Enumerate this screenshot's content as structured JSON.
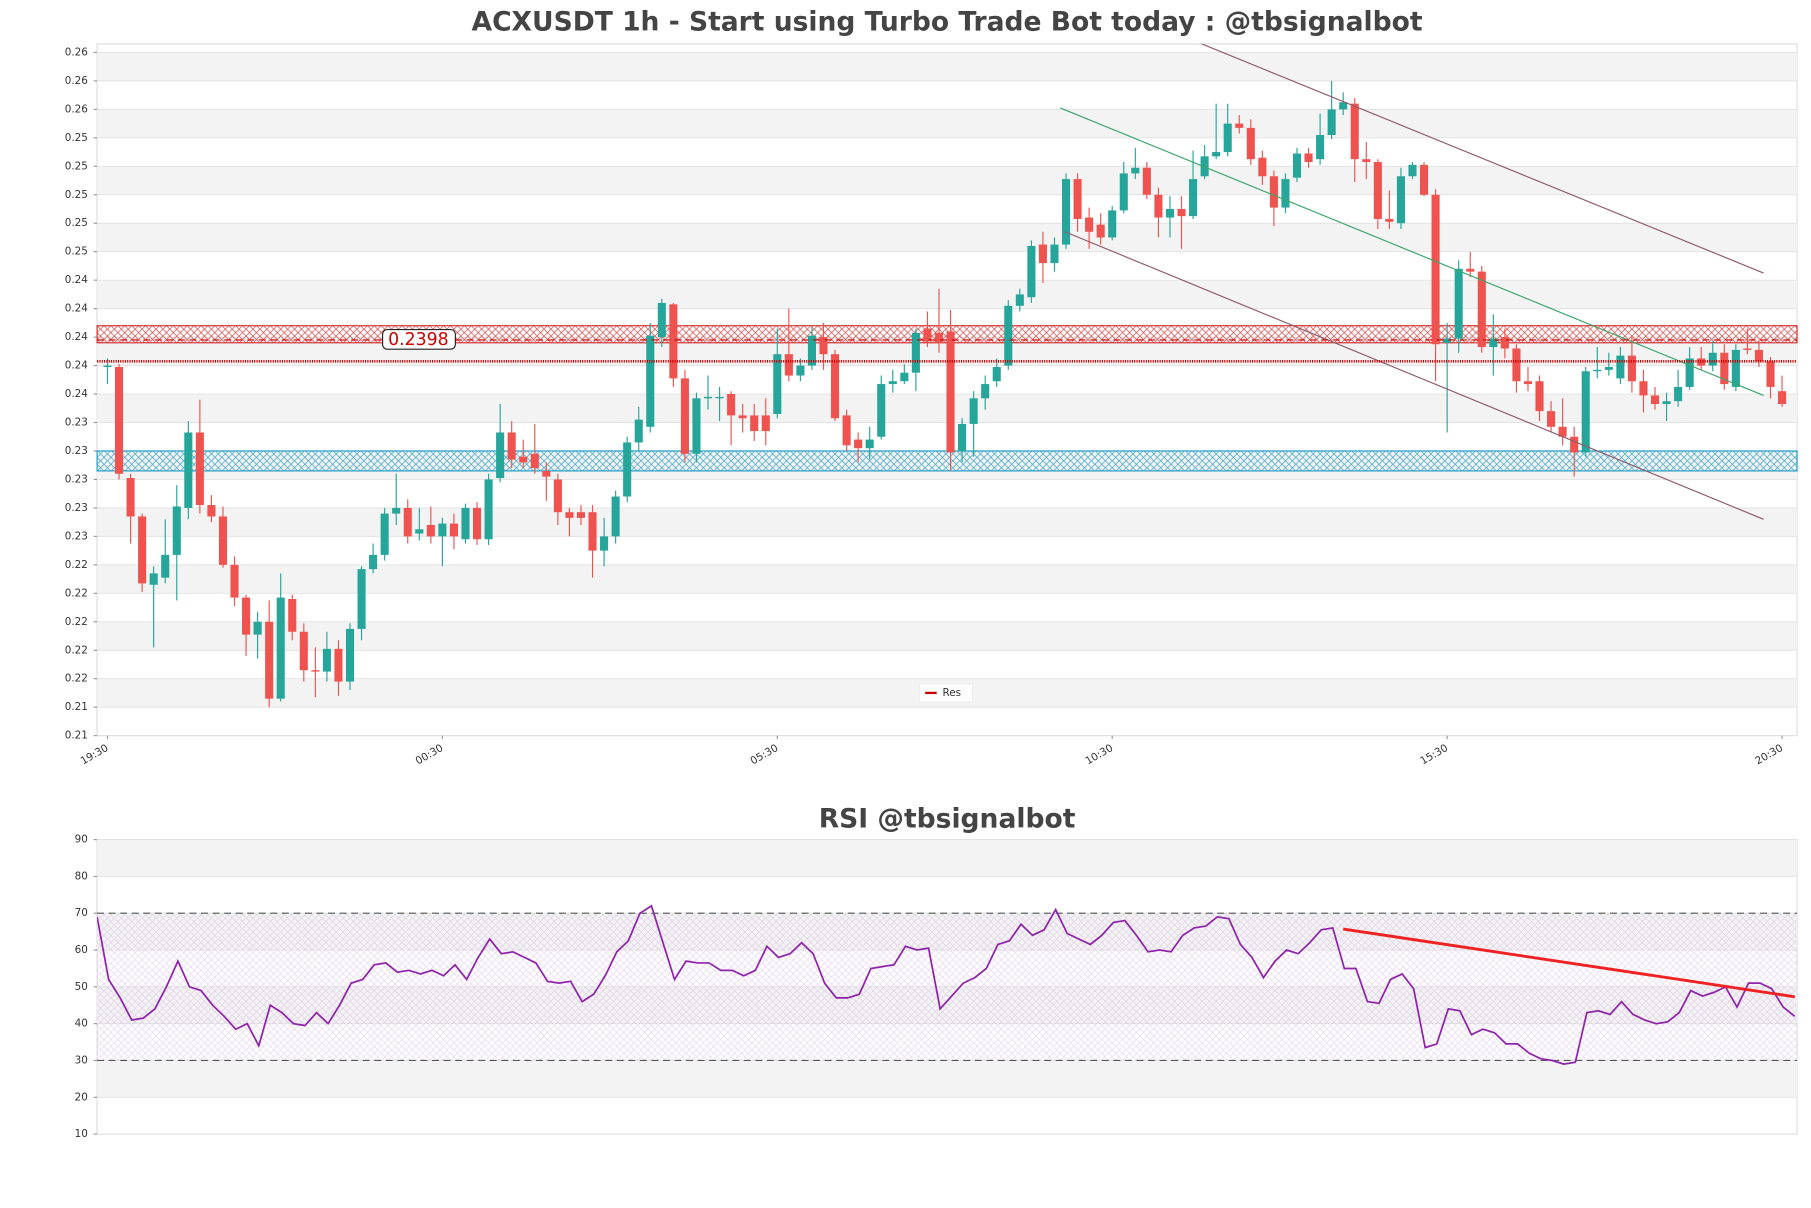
{
  "chart_data": [
    {
      "type": "candlestick",
      "title": "ACXUSDT 1h - Start using Turbo Trade Bot today : @tbsignalbot",
      "xlim": [
        -0.9,
        146.3
      ],
      "xticks": [
        {
          "value": 0,
          "label": "19:30"
        },
        {
          "value": 29,
          "label": "00:30"
        },
        {
          "value": 58,
          "label": "05:30"
        },
        {
          "value": 87,
          "label": "10:30"
        },
        {
          "value": 116,
          "label": "15:30"
        },
        {
          "value": 145,
          "label": "20:30"
        }
      ],
      "ylim": [
        0.212,
        0.2606
      ],
      "yticks": [
        {
          "value": 0.212,
          "label": "0.21"
        },
        {
          "value": 0.214,
          "label": "0.21"
        },
        {
          "value": 0.216,
          "label": "0.22"
        },
        {
          "value": 0.218,
          "label": "0.22"
        },
        {
          "value": 0.22,
          "label": "0.22"
        },
        {
          "value": 0.222,
          "label": "0.22"
        },
        {
          "value": 0.224,
          "label": "0.22"
        },
        {
          "value": 0.226,
          "label": "0.23"
        },
        {
          "value": 0.228,
          "label": "0.23"
        },
        {
          "value": 0.23,
          "label": "0.23"
        },
        {
          "value": 0.232,
          "label": "0.23"
        },
        {
          "value": 0.234,
          "label": "0.23"
        },
        {
          "value": 0.236,
          "label": "0.24"
        },
        {
          "value": 0.238,
          "label": "0.24"
        },
        {
          "value": 0.24,
          "label": "0.24"
        },
        {
          "value": 0.242,
          "label": "0.24"
        },
        {
          "value": 0.244,
          "label": "0.24"
        },
        {
          "value": 0.246,
          "label": "0.25"
        },
        {
          "value": 0.248,
          "label": "0.25"
        },
        {
          "value": 0.25,
          "label": "0.25"
        },
        {
          "value": 0.252,
          "label": "0.25"
        },
        {
          "value": 0.254,
          "label": "0.25"
        },
        {
          "value": 0.256,
          "label": "0.26"
        },
        {
          "value": 0.258,
          "label": "0.26"
        },
        {
          "value": 0.26,
          "label": "0.26"
        }
      ],
      "grid": true,
      "up_color": "#26a69a",
      "down_color": "#ef5350",
      "open": [
        0.2379,
        0.2379,
        0.2301,
        0.2274,
        0.2226,
        0.2231,
        0.2247,
        0.228,
        0.2333,
        0.2282,
        0.2274,
        0.224,
        0.2217,
        0.2191,
        0.22,
        0.2146,
        0.2216,
        0.2193,
        0.2166,
        0.2165,
        0.2181,
        0.2158,
        0.2195,
        0.2237,
        0.2247,
        0.2276,
        0.228,
        0.2262,
        0.2268,
        0.226,
        0.2269,
        0.2258,
        0.228,
        0.2258,
        0.2301,
        0.2333,
        0.2316,
        0.2318,
        0.2306,
        0.23,
        0.2277,
        0.2277,
        0.2277,
        0.225,
        0.226,
        0.2288,
        0.2326,
        0.2337,
        0.24,
        0.2423,
        0.2371,
        0.2318,
        0.2357,
        0.2357,
        0.236,
        0.2345,
        0.2345,
        0.2345,
        0.2346,
        0.2388,
        0.2373,
        0.238,
        0.24,
        0.2388,
        0.2345,
        0.2328,
        0.2322,
        0.233,
        0.2367,
        0.2369,
        0.2375,
        0.2406,
        0.2403,
        0.2404,
        0.232,
        0.2339,
        0.2357,
        0.2369,
        0.238,
        0.2422,
        0.2428,
        0.2465,
        0.2452,
        0.2465,
        0.2511,
        0.2484,
        0.2479,
        0.247,
        0.2489,
        0.2515,
        0.2519,
        0.25,
        0.2484,
        0.249,
        0.2485,
        0.2513,
        0.2527,
        0.253,
        0.255,
        0.2547,
        0.2526,
        0.2513,
        0.2491,
        0.2512,
        0.2529,
        0.2525,
        0.2542,
        0.256,
        0.2564,
        0.2525,
        0.2523,
        0.2483,
        0.248,
        0.2513,
        0.2521,
        0.25,
        0.2396,
        0.2399,
        0.2448,
        0.2446,
        0.2393,
        0.24,
        0.2392,
        0.2369,
        0.2369,
        0.2348,
        0.2337,
        0.233,
        0.2319,
        0.2376,
        0.2377,
        0.2371,
        0.2387,
        0.2369,
        0.2359,
        0.2353,
        0.2355,
        0.2365,
        0.2385,
        0.238,
        0.2389,
        0.2365,
        0.2392,
        0.2391,
        0.2383,
        0.2362
      ],
      "high": [
        0.2385,
        0.2381,
        0.2304,
        0.2276,
        0.2239,
        0.2272,
        0.2296,
        0.2341,
        0.2356,
        0.2289,
        0.2281,
        0.2246,
        0.2219,
        0.2207,
        0.2215,
        0.2234,
        0.2219,
        0.2199,
        0.2182,
        0.2193,
        0.2187,
        0.2199,
        0.2239,
        0.2255,
        0.228,
        0.2304,
        0.2286,
        0.228,
        0.2281,
        0.2273,
        0.2276,
        0.2283,
        0.2284,
        0.2304,
        0.2353,
        0.2341,
        0.2328,
        0.2339,
        0.2312,
        0.2304,
        0.228,
        0.2282,
        0.2282,
        0.2273,
        0.2292,
        0.233,
        0.2351,
        0.241,
        0.2427,
        0.2424,
        0.2377,
        0.2361,
        0.2373,
        0.2365,
        0.2362,
        0.2353,
        0.2353,
        0.2357,
        0.2406,
        0.242,
        0.2385,
        0.2407,
        0.241,
        0.2391,
        0.2349,
        0.2333,
        0.2337,
        0.2373,
        0.2377,
        0.2381,
        0.2406,
        0.2418,
        0.2434,
        0.2419,
        0.2343,
        0.2362,
        0.2373,
        0.2385,
        0.2426,
        0.2434,
        0.2468,
        0.2474,
        0.247,
        0.2515,
        0.2515,
        0.2491,
        0.2487,
        0.2492,
        0.2523,
        0.2533,
        0.2523,
        0.2505,
        0.2499,
        0.2499,
        0.2531,
        0.2535,
        0.2564,
        0.2564,
        0.2556,
        0.2553,
        0.2531,
        0.2517,
        0.2515,
        0.2533,
        0.2533,
        0.2557,
        0.258,
        0.2572,
        0.2568,
        0.2537,
        0.2525,
        0.2503,
        0.2519,
        0.2523,
        0.2523,
        0.2504,
        0.241,
        0.2454,
        0.246,
        0.245,
        0.2416,
        0.2406,
        0.2395,
        0.2379,
        0.2373,
        0.2355,
        0.2357,
        0.2337,
        0.2379,
        0.2393,
        0.2389,
        0.2393,
        0.2401,
        0.2377,
        0.2365,
        0.2361,
        0.2377,
        0.2393,
        0.2393,
        0.2397,
        0.2395,
        0.2395,
        0.2406,
        0.2397,
        0.2386,
        0.2373
      ],
      "low": [
        0.2367,
        0.23,
        0.2255,
        0.2221,
        0.2182,
        0.2227,
        0.2215,
        0.2272,
        0.2276,
        0.227,
        0.2238,
        0.2211,
        0.2176,
        0.2174,
        0.214,
        0.2144,
        0.2187,
        0.2158,
        0.2147,
        0.2158,
        0.2148,
        0.2152,
        0.2187,
        0.2234,
        0.2243,
        0.2268,
        0.2255,
        0.2257,
        0.2255,
        0.2239,
        0.2251,
        0.2255,
        0.2254,
        0.2254,
        0.2298,
        0.2308,
        0.2308,
        0.2304,
        0.2285,
        0.2268,
        0.226,
        0.2268,
        0.2231,
        0.2239,
        0.2255,
        0.2284,
        0.232,
        0.2333,
        0.2393,
        0.2365,
        0.2312,
        0.2312,
        0.2349,
        0.2341,
        0.2324,
        0.2333,
        0.2327,
        0.2324,
        0.2343,
        0.2369,
        0.2369,
        0.2377,
        0.2377,
        0.2341,
        0.232,
        0.2312,
        0.2314,
        0.2328,
        0.2361,
        0.2367,
        0.2362,
        0.2393,
        0.2389,
        0.2306,
        0.2312,
        0.2316,
        0.2349,
        0.2365,
        0.2377,
        0.2418,
        0.2424,
        0.2438,
        0.2446,
        0.2462,
        0.2474,
        0.2462,
        0.2465,
        0.2468,
        0.2487,
        0.2511,
        0.2497,
        0.247,
        0.247,
        0.2462,
        0.2483,
        0.2511,
        0.2525,
        0.2527,
        0.2543,
        0.2521,
        0.2507,
        0.2478,
        0.2487,
        0.2509,
        0.2519,
        0.2521,
        0.2539,
        0.2556,
        0.2509,
        0.2511,
        0.2476,
        0.2476,
        0.2476,
        0.2511,
        0.2499,
        0.2369,
        0.2333,
        0.2389,
        0.2442,
        0.2389,
        0.2373,
        0.2385,
        0.2361,
        0.2362,
        0.2341,
        0.2333,
        0.2324,
        0.2302,
        0.2316,
        0.2371,
        0.2373,
        0.2367,
        0.2361,
        0.2347,
        0.2349,
        0.2341,
        0.2351,
        0.2363,
        0.2377,
        0.2376,
        0.2363,
        0.2362,
        0.2388,
        0.2379,
        0.2357,
        0.2351
      ],
      "close": [
        0.238,
        0.2304,
        0.2274,
        0.2227,
        0.2234,
        0.2247,
        0.2281,
        0.2333,
        0.2282,
        0.2274,
        0.224,
        0.2217,
        0.2191,
        0.22,
        0.2146,
        0.2217,
        0.2193,
        0.2166,
        0.2165,
        0.2181,
        0.2158,
        0.2195,
        0.2237,
        0.2247,
        0.2276,
        0.228,
        0.226,
        0.2265,
        0.226,
        0.2269,
        0.226,
        0.228,
        0.2258,
        0.23,
        0.2333,
        0.2314,
        0.2312,
        0.2308,
        0.2302,
        0.2277,
        0.2273,
        0.2273,
        0.225,
        0.226,
        0.2288,
        0.2326,
        0.2342,
        0.2401,
        0.2424,
        0.2371,
        0.2318,
        0.2357,
        0.2358,
        0.2358,
        0.2345,
        0.2343,
        0.2334,
        0.2334,
        0.2388,
        0.2373,
        0.238,
        0.2401,
        0.2388,
        0.2343,
        0.2324,
        0.2322,
        0.2328,
        0.2367,
        0.2369,
        0.2375,
        0.2403,
        0.2397,
        0.2396,
        0.2319,
        0.2339,
        0.2357,
        0.2367,
        0.2379,
        0.2422,
        0.243,
        0.2464,
        0.2452,
        0.2465,
        0.2511,
        0.2483,
        0.2474,
        0.247,
        0.2489,
        0.2515,
        0.2519,
        0.25,
        0.2484,
        0.249,
        0.2485,
        0.2511,
        0.2527,
        0.253,
        0.255,
        0.2547,
        0.2525,
        0.2513,
        0.2491,
        0.2511,
        0.2529,
        0.2523,
        0.2542,
        0.256,
        0.2565,
        0.2525,
        0.2523,
        0.2483,
        0.2481,
        0.2513,
        0.2521,
        0.25,
        0.2395,
        0.2399,
        0.2448,
        0.2446,
        0.2393,
        0.2399,
        0.2392,
        0.2369,
        0.2367,
        0.2348,
        0.2337,
        0.233,
        0.2319,
        0.2376,
        0.2377,
        0.2379,
        0.2387,
        0.2369,
        0.2359,
        0.2353,
        0.2355,
        0.2365,
        0.2385,
        0.238,
        0.2389,
        0.2367,
        0.2391,
        0.2391,
        0.2383,
        0.2365,
        0.2353
      ],
      "zones": [
        {
          "range": [
            0.2396,
            0.2408
          ],
          "color": "#d32f2f"
        },
        {
          "range": [
            0.2306,
            0.232
          ],
          "color": "#1f9bc4"
        }
      ],
      "resistance": {
        "name": "Res",
        "value": 0.2383,
        "color": "#cc0000"
      },
      "legend": "lower center",
      "price_label": 0.2398,
      "trend_lines": [
        {
          "x": [
            87.5,
            143.4
          ],
          "y": [
            0.263,
            0.2445
          ],
          "color": "#8d5a6a"
        },
        {
          "x": [
            82.9,
            143.4
          ],
          "y": [
            0.2474,
            0.2272
          ],
          "color": "#8d5a6a"
        },
        {
          "x": [
            82.5,
            143.4
          ],
          "y": [
            0.2561,
            0.2359
          ],
          "color": "#3aa66a"
        }
      ]
    },
    {
      "type": "line",
      "title": "RSI @tbsignalbot",
      "xlim": [
        0,
        147.2
      ],
      "ylim": [
        10,
        90
      ],
      "yticks": [
        10,
        20,
        30,
        40,
        50,
        60,
        70,
        80,
        90
      ],
      "grid": true,
      "levels": [
        30,
        70
      ],
      "series": [
        {
          "color": "#8e24aa",
          "values": [
            69,
            52,
            47,
            41,
            41.5,
            44,
            50,
            57,
            50,
            49,
            45,
            42,
            38.5,
            40,
            34,
            45,
            43,
            40,
            39.5,
            43,
            40,
            45,
            51,
            52,
            56,
            56.5,
            54,
            54.5,
            53.5,
            54.5,
            53,
            56,
            52,
            58,
            63,
            59,
            59.5,
            58,
            56.5,
            51.5,
            51,
            51.5,
            46,
            48,
            53,
            59.5,
            62.5,
            70,
            72,
            62,
            52,
            57,
            56.5,
            56.5,
            54.5,
            54.5,
            53,
            54.5,
            61,
            58,
            59,
            62,
            59,
            51,
            47,
            47,
            48,
            55,
            55.5,
            56,
            61,
            60,
            60.5,
            44,
            47.5,
            51,
            52.5,
            55,
            61.5,
            62.5,
            67,
            64,
            65.5,
            71,
            64.5,
            63,
            61.5,
            64,
            67.5,
            68,
            64,
            59.5,
            60,
            59.5,
            64,
            66,
            66.5,
            69,
            68.5,
            61.5,
            58,
            52.5,
            57,
            60,
            59,
            62,
            65.5,
            66,
            55,
            55,
            46,
            45.5,
            52,
            53.5,
            49.5,
            33.5,
            34.5,
            44,
            43.5,
            37,
            38.5,
            37.5,
            34.5,
            34.5,
            32,
            30.5,
            30,
            29,
            29.5,
            43,
            43.5,
            42.5,
            46,
            42.5,
            41,
            40,
            40.5,
            43,
            49,
            47.5,
            48.5,
            50,
            44.5,
            51,
            51,
            49.5,
            44.5,
            42
          ]
        }
      ],
      "trend_line": {
        "x": [
          107.9,
          147
        ],
        "y": [
          65.7,
          47.3
        ],
        "color": "#ee2222"
      }
    }
  ]
}
